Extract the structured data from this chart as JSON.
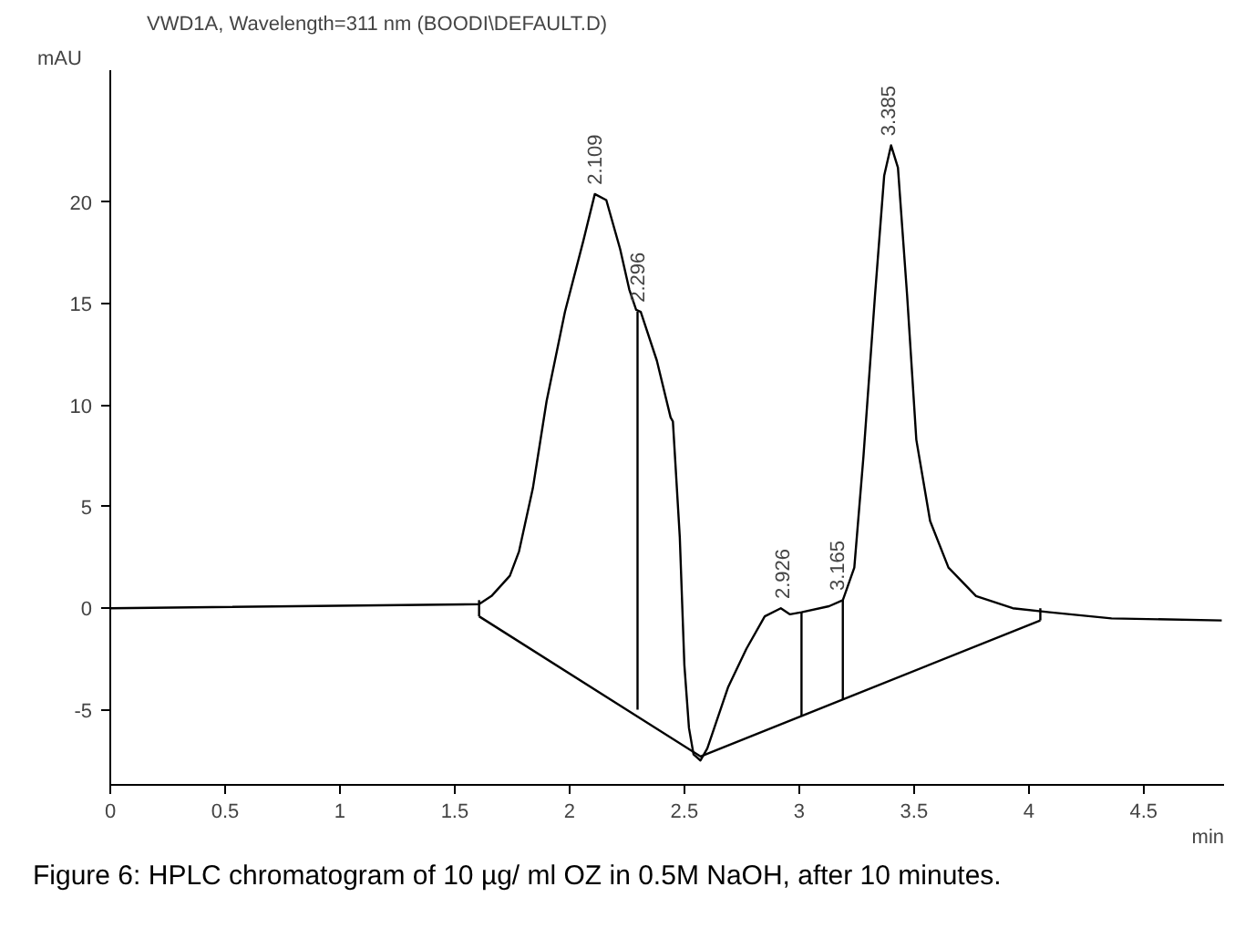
{
  "chart_data": {
    "type": "line",
    "title": "VWD1A, Wavelength=311 nm (BOODI\\DEFAULT.D)",
    "xlabel": "min",
    "ylabel": "mAU",
    "xlim": [
      0,
      4.85
    ],
    "ylim": [
      -8.7,
      26.5
    ],
    "xticks": [
      0,
      0.5,
      1,
      1.5,
      2,
      2.5,
      3,
      3.5,
      4,
      4.5
    ],
    "yticks": [
      -5,
      0,
      5,
      10,
      15,
      20
    ],
    "grid": false,
    "marker": "none",
    "line_style": "solid",
    "series": [
      {
        "color": "#000000",
        "x": [
          0,
          1.606,
          1.66,
          1.74,
          1.78,
          1.84,
          1.9,
          1.98,
          2.06,
          2.11,
          2.16,
          2.22,
          2.26,
          2.29,
          2.31,
          2.38,
          2.44,
          2.45,
          2.48,
          2.5,
          2.52,
          2.54,
          2.57,
          2.6,
          2.63,
          2.69,
          2.77,
          2.85,
          2.92,
          2.96,
          3.01,
          3.13,
          3.19,
          3.24,
          3.28,
          3.33,
          3.37,
          3.4,
          3.43,
          3.47,
          3.51,
          3.57,
          3.65,
          3.77,
          3.93,
          4.09,
          4.36,
          4.84
        ],
        "values": [
          0,
          0.2,
          0.6,
          1.6,
          2.8,
          5.9,
          10.2,
          14.6,
          18.1,
          20.4,
          20.1,
          17.7,
          15.7,
          14.7,
          14.6,
          12.2,
          9.4,
          9.2,
          3.5,
          -2.8,
          -5.9,
          -7.2,
          -7.5,
          -6.9,
          -5.9,
          -3.9,
          -2.0,
          -0.4,
          0.0,
          -0.3,
          -0.2,
          0.1,
          0.4,
          2.0,
          7.5,
          15.4,
          21.3,
          22.8,
          21.7,
          15.4,
          8.3,
          4.3,
          2.0,
          0.6,
          0.0,
          -0.2,
          -0.5,
          -0.6
        ]
      },
      {
        "color": "#000000",
        "x": [
          1.606,
          2.57,
          4.05
        ],
        "values": [
          -0.4,
          -7.3,
          -0.6
        ]
      },
      {
        "color": "#000000",
        "x": [
          1.606,
          1.606
        ],
        "values": [
          -0.4,
          0.4
        ]
      },
      {
        "color": "#000000",
        "x": [
          4.05,
          4.05
        ],
        "values": [
          -0.6,
          0.0
        ]
      },
      {
        "color": "#000000",
        "x": [
          2.296,
          2.296
        ],
        "values": [
          -5.0,
          14.6
        ]
      },
      {
        "color": "#000000",
        "x": [
          3.01,
          3.01
        ],
        "values": [
          -5.3,
          -0.2
        ]
      },
      {
        "color": "#000000",
        "x": [
          3.19,
          3.19
        ],
        "values": [
          -4.5,
          0.4
        ]
      }
    ],
    "annotations": [
      {
        "text": "2.109",
        "x": 2.109,
        "y": 20.5
      },
      {
        "text": "2.296",
        "x": 2.296,
        "y": 14.7
      },
      {
        "text": "2.926",
        "x": 2.926,
        "y": 0.1
      },
      {
        "text": "3.165",
        "x": 3.165,
        "y": 0.5
      },
      {
        "text": "3.385",
        "x": 3.385,
        "y": 22.9
      },
      "Figure 6:  HPLC chromatogram of 10 µg/ ml OZ in 0.5M NaOH, after 10 minutes."
    ]
  }
}
